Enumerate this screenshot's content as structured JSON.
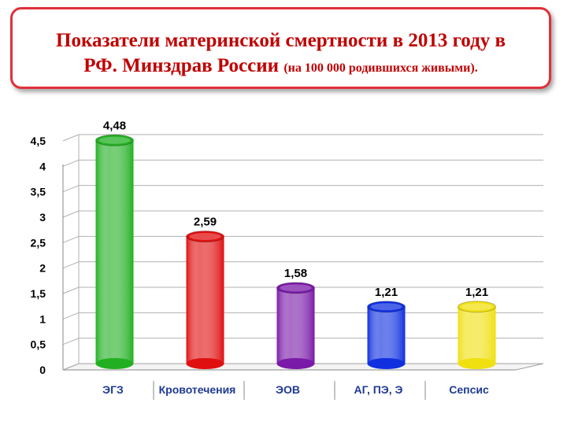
{
  "title": {
    "line1": "Показатели материнской смертности в 2013 году в",
    "line2_main": "РФ. Минздрав России ",
    "line2_small": "(на 100 000 родившихся живыми)."
  },
  "colors": {
    "title": "#c00000",
    "border": "#e0303a",
    "category_label": "#1f3a93"
  },
  "chart_data": {
    "type": "bar",
    "style": "3d-cylinder",
    "categories": [
      "ЭГЗ",
      "Кровотечения",
      "ЭОВ",
      "АГ, ПЭ, Э",
      "Сепсис"
    ],
    "values": [
      4.48,
      2.59,
      1.58,
      1.21,
      1.21
    ],
    "value_labels": [
      "4,48",
      "2,59",
      "1,58",
      "1,21",
      "1,21"
    ],
    "bar_colors": [
      "#22b022",
      "#e01010",
      "#7a1aa8",
      "#1030e0",
      "#f0e010"
    ],
    "ylim": [
      0,
      4.5
    ],
    "yticks": [
      0,
      0.5,
      1,
      1.5,
      2,
      2.5,
      3,
      3.5,
      4,
      4.5
    ],
    "ytick_labels": [
      "0",
      "0,5",
      "1",
      "1,5",
      "2",
      "2,5",
      "3",
      "3,5",
      "4",
      "4,5"
    ],
    "grid": true,
    "title": "",
    "xlabel": "",
    "ylabel": ""
  }
}
